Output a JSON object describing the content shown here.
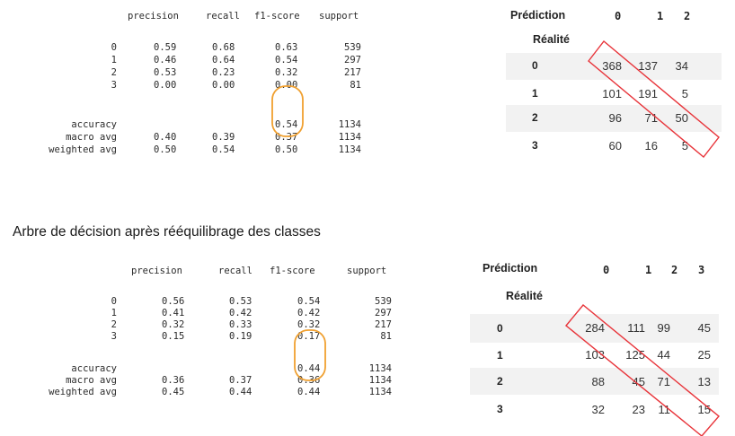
{
  "report1": {
    "header": {
      "precision": "precision",
      "recall": "recall",
      "f1": "f1-score",
      "support": "support"
    },
    "rows": [
      {
        "label": "0",
        "precision": "0.59",
        "recall": "0.68",
        "f1": "0.63",
        "support": "539"
      },
      {
        "label": "1",
        "precision": "0.46",
        "recall": "0.64",
        "f1": "0.54",
        "support": "297"
      },
      {
        "label": "2",
        "precision": "0.53",
        "recall": "0.23",
        "f1": "0.32",
        "support": "217"
      },
      {
        "label": "3",
        "precision": "0.00",
        "recall": "0.00",
        "f1": "0.00",
        "support": "81"
      }
    ],
    "accuracy": {
      "label": "accuracy",
      "f1": "0.54",
      "support": "1134"
    },
    "macro": {
      "label": "macro avg",
      "precision": "0.40",
      "recall": "0.39",
      "f1": "0.37",
      "support": "1134"
    },
    "weighted": {
      "label": "weighted avg",
      "precision": "0.50",
      "recall": "0.54",
      "f1": "0.50",
      "support": "1134"
    }
  },
  "matrix1": {
    "col_label": "Prédiction",
    "row_label": "Réalité",
    "cols": [
      "0",
      "1",
      "2"
    ],
    "rows": [
      {
        "idx": "0",
        "cells": [
          "368",
          "137",
          "34"
        ]
      },
      {
        "idx": "1",
        "cells": [
          "101",
          "191",
          "5"
        ]
      },
      {
        "idx": "2",
        "cells": [
          "96",
          "71",
          "50"
        ]
      },
      {
        "idx": "3",
        "cells": [
          "60",
          "16",
          "5"
        ]
      }
    ]
  },
  "section_title": "Arbre de décision après rééquilibrage des classes",
  "report2": {
    "header": {
      "precision": "precision",
      "recall": "recall",
      "f1": "f1-score",
      "support": "support"
    },
    "rows": [
      {
        "label": "0",
        "precision": "0.56",
        "recall": "0.53",
        "f1": "0.54",
        "support": "539"
      },
      {
        "label": "1",
        "precision": "0.41",
        "recall": "0.42",
        "f1": "0.42",
        "support": "297"
      },
      {
        "label": "2",
        "precision": "0.32",
        "recall": "0.33",
        "f1": "0.32",
        "support": "217"
      },
      {
        "label": "3",
        "precision": "0.15",
        "recall": "0.19",
        "f1": "0.17",
        "support": "81"
      }
    ],
    "accuracy": {
      "label": "accuracy",
      "f1": "0.44",
      "support": "1134"
    },
    "macro": {
      "label": "macro avg",
      "precision": "0.36",
      "recall": "0.37",
      "f1": "0.36",
      "support": "1134"
    },
    "weighted": {
      "label": "weighted avg",
      "precision": "0.45",
      "recall": "0.44",
      "f1": "0.44",
      "support": "1134"
    }
  },
  "matrix2": {
    "col_label": "Prédiction",
    "row_label": "Réalité",
    "cols": [
      "0",
      "1",
      "2",
      "3"
    ],
    "rows": [
      {
        "idx": "0",
        "cells": [
          "284",
          "111",
          "99",
          "45"
        ]
      },
      {
        "idx": "1",
        "cells": [
          "103",
          "125",
          "44",
          "25"
        ]
      },
      {
        "idx": "2",
        "cells": [
          "88",
          "45",
          "71",
          "13"
        ]
      },
      {
        "idx": "3",
        "cells": [
          "32",
          "23",
          "11",
          "15"
        ]
      }
    ]
  },
  "colors": {
    "diagonal_highlight": "#e8343a",
    "f1_highlight": "#f0a030",
    "stripe": "#f2f2f2"
  }
}
